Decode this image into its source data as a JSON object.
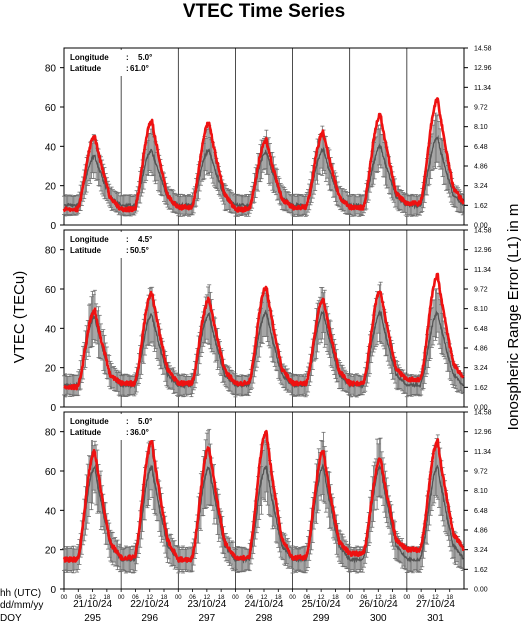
{
  "chart_data": {
    "type": "line",
    "title": "VTEC Time Series",
    "ylabel_left": "VTEC (TECu)",
    "ylabel_right": "Ionospheric Range Error (L1) in m",
    "ylim": [
      0,
      90
    ],
    "y_ticks": [
      "0",
      "20",
      "40",
      "60",
      "80"
    ],
    "y_right_ticks": [
      "0.00",
      "1.62",
      "3.24",
      "4.86",
      "6.48",
      "8.10",
      "9.72",
      "11.34",
      "12.96",
      "14.58"
    ],
    "x_hour_ticks": [
      "00",
      "06",
      "12",
      "18"
    ],
    "days": [
      {
        "date": "21/10/24",
        "doy": "295"
      },
      {
        "date": "22/10/24",
        "doy": "296"
      },
      {
        "date": "23/10/24",
        "doy": "297"
      },
      {
        "date": "24/10/24",
        "doy": "298"
      },
      {
        "date": "25/10/24",
        "doy": "299"
      },
      {
        "date": "26/10/24",
        "doy": "300"
      },
      {
        "date": "27/10/24",
        "doy": "301"
      }
    ],
    "footer_labels": {
      "hh": "hh (UTC)",
      "date": "dd/mm/yy",
      "doy": "DOY"
    },
    "colors": {
      "observed": "#ee1111",
      "reference": "#6e6e6e"
    },
    "panels": [
      {
        "longitude_label": "Longitude",
        "longitude": "5.0°",
        "latitude_label": "Latitude",
        "latitude": "61.0°",
        "observed_day_maxima": [
          45,
          53,
          52,
          43,
          47,
          56,
          64
        ],
        "observed_night_minima": [
          8,
          8,
          9,
          8,
          9,
          9,
          11
        ],
        "reference_day_maxima": [
          35,
          38,
          38,
          37,
          38,
          40,
          44
        ],
        "reference_night_minima": [
          10,
          10,
          10,
          10,
          10,
          10,
          10
        ]
      },
      {
        "longitude_label": "Longitude",
        "longitude": "4.5°",
        "latitude_label": "Latitude",
        "latitude": "50.5°",
        "observed_day_maxima": [
          49,
          58,
          55,
          61,
          55,
          59,
          67
        ],
        "observed_night_minima": [
          10,
          12,
          12,
          12,
          12,
          12,
          14
        ],
        "reference_day_maxima": [
          46,
          47,
          47,
          48,
          48,
          48,
          48
        ],
        "reference_night_minima": [
          11,
          11,
          11,
          11,
          11,
          11,
          11
        ]
      },
      {
        "longitude_label": "Longitude",
        "longitude": "5.0°",
        "latitude_label": "Latitude",
        "latitude": "36.0°",
        "observed_day_maxima": [
          70,
          75,
          72,
          80,
          70,
          66,
          75
        ],
        "observed_night_minima": [
          15,
          16,
          15,
          16,
          16,
          18,
          20
        ],
        "reference_day_maxima": [
          62,
          62,
          62,
          62,
          62,
          62,
          62
        ],
        "reference_night_minima": [
          15,
          15,
          15,
          15,
          15,
          15,
          15
        ]
      }
    ]
  }
}
